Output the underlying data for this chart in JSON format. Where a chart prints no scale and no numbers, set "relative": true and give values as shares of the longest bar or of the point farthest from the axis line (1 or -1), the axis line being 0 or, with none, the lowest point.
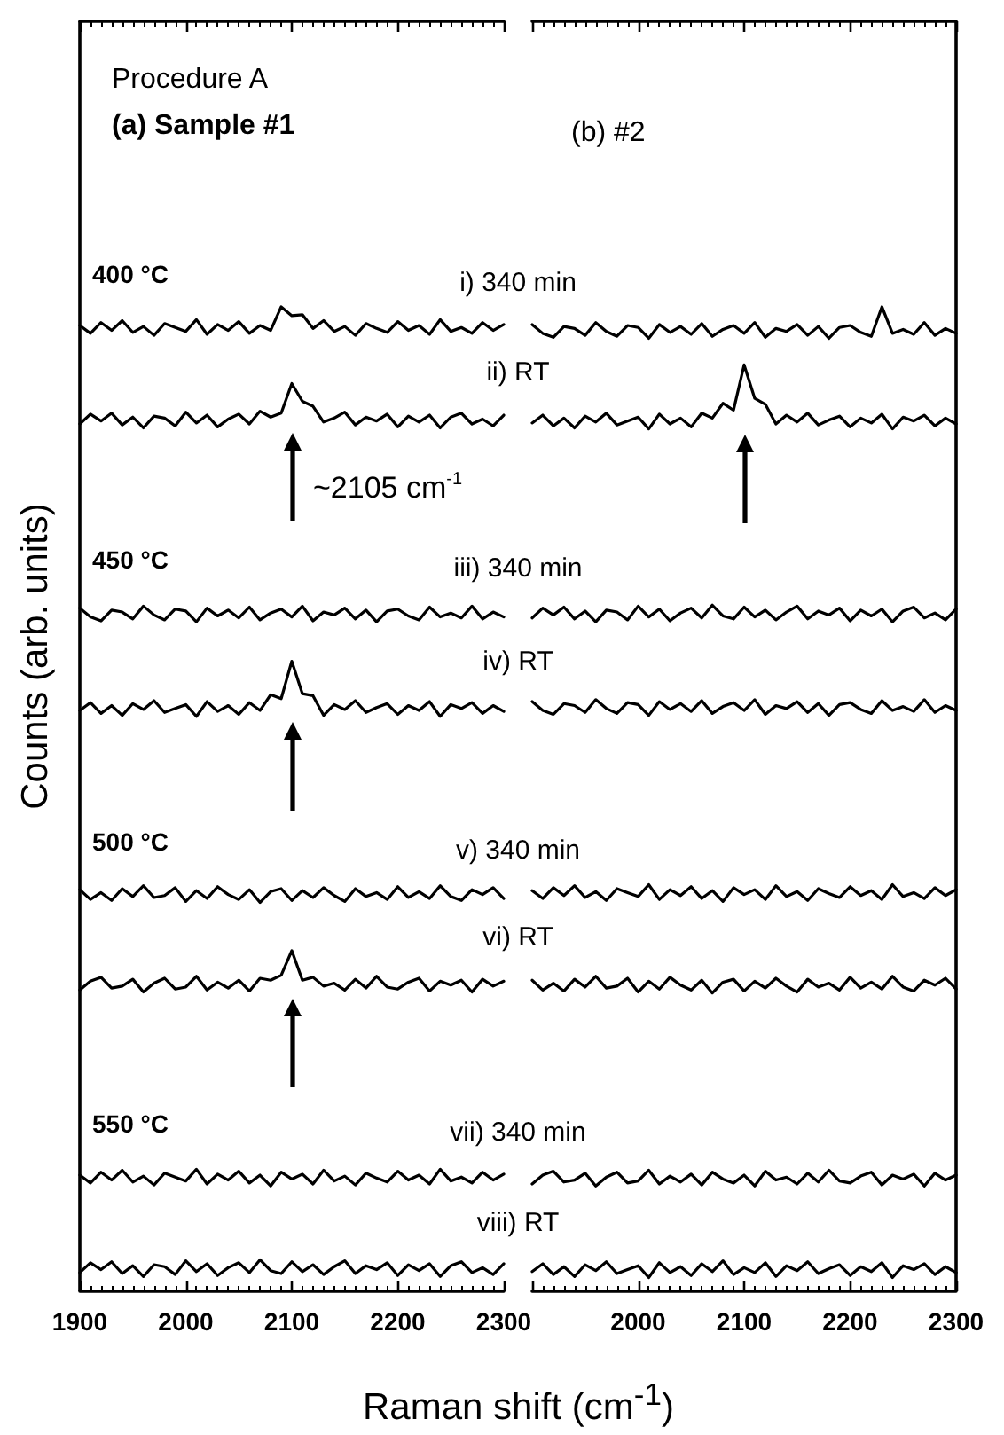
{
  "chart_data": [
    {
      "type": "line",
      "title": "Procedure A",
      "subtitle": "(a) Sample #1",
      "xlabel": "Raman shift (cm$^{-1}$)",
      "ylabel": "Counts (arb. units)",
      "relative": true,
      "marker": "none",
      "line_style": "solid",
      "grid": false,
      "tick_labels": "x",
      "xlim": [
        1900,
        2300
      ],
      "xticks": [
        1900,
        2000,
        2100,
        2200,
        2300
      ],
      "x": [
        1900,
        1910,
        1920,
        1930,
        1940,
        1950,
        1960,
        1970,
        1980,
        1990,
        2000,
        2010,
        2020,
        2030,
        2040,
        2050,
        2060,
        2070,
        2080,
        2090,
        2100,
        2110,
        2120,
        2130,
        2140,
        2150,
        2160,
        2170,
        2180,
        2190,
        2200,
        2210,
        2220,
        2230,
        2240,
        2250,
        2260,
        2270,
        2280,
        2290,
        2300
      ],
      "annotations": [
        "400 °C",
        "450 °C",
        "500 °C",
        "550 °C",
        "~2105 cm$^{-1}$"
      ],
      "series": [
        {
          "name": "i) 340 min",
          "color": "#000000",
          "values": [
            0.981,
            0.973,
            0.984,
            0.976,
            0.986,
            0.974,
            0.98,
            0.971,
            0.983,
            0.979,
            0.975,
            0.987,
            0.972,
            0.982,
            0.976,
            0.985,
            0.973,
            0.981,
            0.976,
            1.0,
            0.991,
            0.992,
            0.978,
            0.986,
            0.975,
            0.98,
            0.971,
            0.983,
            0.978,
            0.974,
            0.985,
            0.976,
            0.981,
            0.972,
            0.987,
            0.975,
            0.979,
            0.973,
            0.984,
            0.976,
            0.982
          ]
        },
        {
          "name": "ii) RT",
          "color": "#000000",
          "values": [
            0.881,
            0.891,
            0.884,
            0.892,
            0.88,
            0.888,
            0.877,
            0.889,
            0.887,
            0.879,
            0.893,
            0.882,
            0.89,
            0.878,
            0.886,
            0.891,
            0.881,
            0.894,
            0.888,
            0.892,
            0.922,
            0.904,
            0.899,
            0.883,
            0.887,
            0.893,
            0.88,
            0.888,
            0.884,
            0.891,
            0.878,
            0.889,
            0.883,
            0.89,
            0.877,
            0.888,
            0.892,
            0.881,
            0.886,
            0.879,
            0.89
          ]
        },
        {
          "name": "iii) 340 min",
          "color": "#000000",
          "values": [
            0.694,
            0.685,
            0.681,
            0.692,
            0.69,
            0.683,
            0.696,
            0.687,
            0.682,
            0.693,
            0.691,
            0.68,
            0.694,
            0.686,
            0.692,
            0.684,
            0.695,
            0.682,
            0.689,
            0.693,
            0.685,
            0.696,
            0.681,
            0.69,
            0.687,
            0.694,
            0.683,
            0.692,
            0.68,
            0.691,
            0.693,
            0.686,
            0.682,
            0.695,
            0.685,
            0.689,
            0.684,
            0.696,
            0.683,
            0.69,
            0.685
          ]
        },
        {
          "name": "iv) RT",
          "color": "#000000",
          "values": [
            0.59,
            0.598,
            0.587,
            0.595,
            0.585,
            0.597,
            0.591,
            0.6,
            0.588,
            0.592,
            0.596,
            0.584,
            0.599,
            0.589,
            0.595,
            0.586,
            0.598,
            0.59,
            0.606,
            0.602,
            0.64,
            0.607,
            0.605,
            0.585,
            0.596,
            0.591,
            0.6,
            0.588,
            0.593,
            0.597,
            0.586,
            0.595,
            0.59,
            0.599,
            0.584,
            0.596,
            0.592,
            0.598,
            0.587,
            0.595,
            0.589
          ]
        },
        {
          "name": "v) 340 min",
          "color": "#000000",
          "values": [
            0.408,
            0.398,
            0.405,
            0.397,
            0.409,
            0.401,
            0.412,
            0.4,
            0.402,
            0.41,
            0.396,
            0.407,
            0.399,
            0.411,
            0.403,
            0.398,
            0.408,
            0.395,
            0.406,
            0.409,
            0.397,
            0.407,
            0.4,
            0.41,
            0.402,
            0.396,
            0.409,
            0.401,
            0.405,
            0.398,
            0.411,
            0.4,
            0.406,
            0.399,
            0.412,
            0.401,
            0.397,
            0.408,
            0.403,
            0.41,
            0.399
          ]
        },
        {
          "name": "vi) RT",
          "color": "#000000",
          "values": [
            0.306,
            0.315,
            0.319,
            0.308,
            0.31,
            0.317,
            0.304,
            0.313,
            0.318,
            0.307,
            0.309,
            0.32,
            0.306,
            0.314,
            0.308,
            0.316,
            0.305,
            0.318,
            0.316,
            0.321,
            0.346,
            0.316,
            0.319,
            0.31,
            0.313,
            0.306,
            0.317,
            0.308,
            0.32,
            0.309,
            0.307,
            0.314,
            0.318,
            0.305,
            0.315,
            0.311,
            0.316,
            0.304,
            0.317,
            0.31,
            0.315
          ]
        },
        {
          "name": "vii) 340 min",
          "color": "#000000",
          "values": [
            0.118,
            0.11,
            0.121,
            0.113,
            0.123,
            0.111,
            0.117,
            0.108,
            0.12,
            0.116,
            0.112,
            0.124,
            0.109,
            0.119,
            0.113,
            0.122,
            0.11,
            0.118,
            0.107,
            0.121,
            0.114,
            0.119,
            0.109,
            0.123,
            0.112,
            0.117,
            0.108,
            0.12,
            0.115,
            0.111,
            0.122,
            0.113,
            0.118,
            0.109,
            0.124,
            0.112,
            0.116,
            0.11,
            0.121,
            0.113,
            0.119
          ]
        },
        {
          "name": "viii) RT",
          "color": "#000000",
          "values": [
            0.019,
            0.029,
            0.022,
            0.03,
            0.018,
            0.026,
            0.015,
            0.027,
            0.025,
            0.017,
            0.031,
            0.02,
            0.028,
            0.016,
            0.024,
            0.029,
            0.019,
            0.032,
            0.021,
            0.018,
            0.03,
            0.02,
            0.027,
            0.017,
            0.025,
            0.031,
            0.018,
            0.026,
            0.022,
            0.029,
            0.016,
            0.027,
            0.021,
            0.028,
            0.015,
            0.026,
            0.03,
            0.019,
            0.024,
            0.017,
            0.028
          ]
        }
      ]
    },
    {
      "type": "line",
      "title": "(b) #2",
      "relative": true,
      "marker": "none",
      "line_style": "solid",
      "grid": false,
      "tick_labels": "x",
      "xlim": [
        1900,
        2300
      ],
      "xticks": [
        {
          "value": 1900,
          "label": null
        },
        2000,
        2100,
        2200,
        2300
      ],
      "x": [
        1900,
        1910,
        1920,
        1930,
        1940,
        1950,
        1960,
        1970,
        1980,
        1990,
        2000,
        2010,
        2020,
        2030,
        2040,
        2050,
        2060,
        2070,
        2080,
        2090,
        2100,
        2110,
        2120,
        2130,
        2140,
        2150,
        2160,
        2170,
        2180,
        2190,
        2200,
        2210,
        2220,
        2230,
        2240,
        2250,
        2260,
        2270,
        2280,
        2290,
        2300
      ],
      "series": [
        {
          "color": "#000000",
          "values": [
            0.982,
            0.973,
            0.969,
            0.98,
            0.978,
            0.971,
            0.984,
            0.975,
            0.97,
            0.981,
            0.979,
            0.968,
            0.982,
            0.974,
            0.98,
            0.972,
            0.983,
            0.97,
            0.977,
            0.981,
            0.973,
            0.984,
            0.969,
            0.978,
            0.975,
            0.982,
            0.971,
            0.98,
            0.968,
            0.979,
            0.981,
            0.974,
            0.97,
            1.0,
            0.973,
            0.977,
            0.972,
            0.984,
            0.971,
            0.978,
            0.973
          ]
        },
        {
          "color": "#000000",
          "values": [
            0.882,
            0.89,
            0.879,
            0.887,
            0.877,
            0.889,
            0.883,
            0.892,
            0.88,
            0.884,
            0.888,
            0.876,
            0.891,
            0.881,
            0.887,
            0.878,
            0.892,
            0.887,
            0.902,
            0.895,
            0.941,
            0.907,
            0.901,
            0.881,
            0.89,
            0.883,
            0.892,
            0.88,
            0.885,
            0.889,
            0.878,
            0.887,
            0.882,
            0.891,
            0.876,
            0.888,
            0.884,
            0.89,
            0.879,
            0.887,
            0.881
          ]
        },
        {
          "color": "#000000",
          "values": [
            0.684,
            0.694,
            0.687,
            0.695,
            0.683,
            0.691,
            0.68,
            0.692,
            0.69,
            0.682,
            0.696,
            0.685,
            0.693,
            0.681,
            0.689,
            0.694,
            0.684,
            0.697,
            0.686,
            0.683,
            0.695,
            0.685,
            0.692,
            0.682,
            0.69,
            0.696,
            0.683,
            0.691,
            0.687,
            0.694,
            0.681,
            0.692,
            0.686,
            0.693,
            0.68,
            0.691,
            0.695,
            0.684,
            0.689,
            0.682,
            0.693
          ]
        },
        {
          "color": "#000000",
          "values": [
            0.599,
            0.59,
            0.586,
            0.597,
            0.595,
            0.588,
            0.601,
            0.592,
            0.587,
            0.598,
            0.596,
            0.585,
            0.599,
            0.591,
            0.597,
            0.589,
            0.6,
            0.587,
            0.594,
            0.598,
            0.59,
            0.601,
            0.586,
            0.595,
            0.592,
            0.599,
            0.588,
            0.597,
            0.585,
            0.596,
            0.598,
            0.591,
            0.587,
            0.6,
            0.59,
            0.594,
            0.589,
            0.601,
            0.588,
            0.595,
            0.59
          ]
        },
        {
          "color": "#000000",
          "values": [
            0.407,
            0.399,
            0.41,
            0.402,
            0.412,
            0.4,
            0.406,
            0.397,
            0.409,
            0.405,
            0.401,
            0.413,
            0.398,
            0.408,
            0.402,
            0.411,
            0.399,
            0.407,
            0.396,
            0.41,
            0.403,
            0.408,
            0.398,
            0.412,
            0.401,
            0.406,
            0.397,
            0.409,
            0.404,
            0.4,
            0.411,
            0.402,
            0.407,
            0.398,
            0.413,
            0.401,
            0.405,
            0.399,
            0.41,
            0.402,
            0.408
          ]
        },
        {
          "color": "#000000",
          "values": [
            0.316,
            0.306,
            0.313,
            0.305,
            0.317,
            0.309,
            0.32,
            0.308,
            0.31,
            0.318,
            0.304,
            0.315,
            0.307,
            0.319,
            0.311,
            0.306,
            0.316,
            0.303,
            0.314,
            0.317,
            0.305,
            0.315,
            0.308,
            0.318,
            0.31,
            0.304,
            0.317,
            0.309,
            0.313,
            0.306,
            0.319,
            0.308,
            0.314,
            0.307,
            0.32,
            0.309,
            0.305,
            0.316,
            0.311,
            0.318,
            0.307
          ]
        },
        {
          "color": "#000000",
          "values": [
            0.109,
            0.118,
            0.122,
            0.111,
            0.113,
            0.12,
            0.107,
            0.116,
            0.121,
            0.11,
            0.112,
            0.123,
            0.109,
            0.117,
            0.111,
            0.119,
            0.108,
            0.121,
            0.114,
            0.11,
            0.118,
            0.107,
            0.122,
            0.113,
            0.116,
            0.109,
            0.12,
            0.111,
            0.123,
            0.112,
            0.11,
            0.117,
            0.121,
            0.108,
            0.118,
            0.114,
            0.119,
            0.107,
            0.12,
            0.113,
            0.118
          ]
        },
        {
          "color": "#000000",
          "values": [
            0.02,
            0.028,
            0.017,
            0.025,
            0.015,
            0.027,
            0.021,
            0.03,
            0.018,
            0.022,
            0.026,
            0.014,
            0.029,
            0.019,
            0.025,
            0.016,
            0.028,
            0.02,
            0.031,
            0.017,
            0.024,
            0.019,
            0.029,
            0.015,
            0.026,
            0.021,
            0.03,
            0.018,
            0.023,
            0.027,
            0.016,
            0.025,
            0.02,
            0.029,
            0.014,
            0.026,
            0.022,
            0.028,
            0.017,
            0.025,
            0.019
          ]
        }
      ]
    }
  ]
}
